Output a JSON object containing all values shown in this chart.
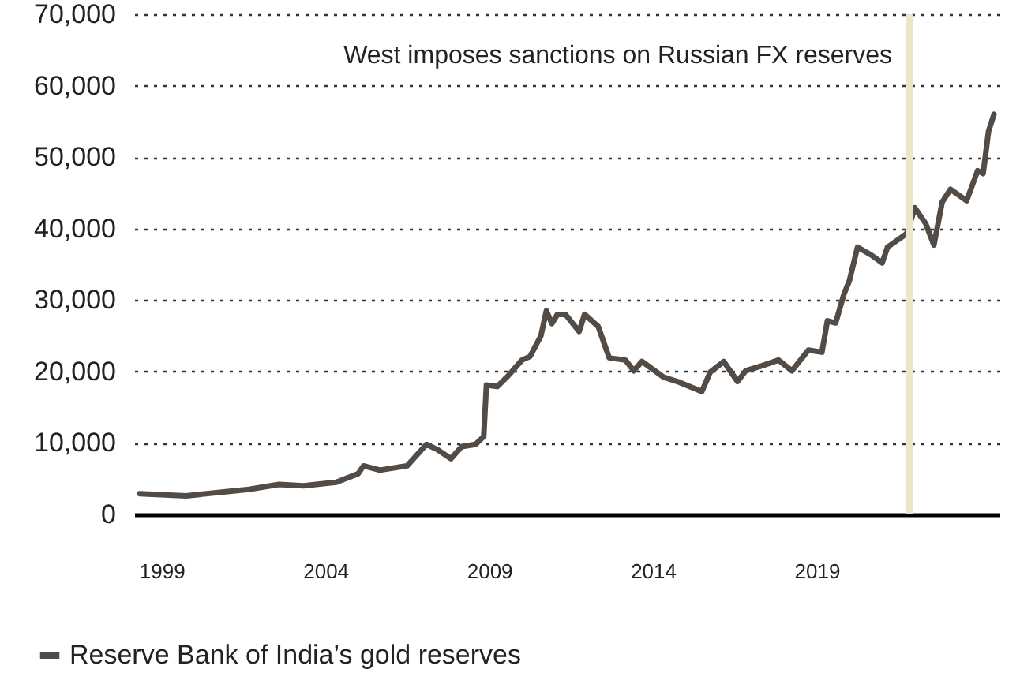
{
  "chart_data": {
    "type": "line",
    "x": [
      "1998-05",
      "1999-10",
      "2001-09",
      "2002-08",
      "2003-05",
      "2004-05",
      "2005-01",
      "2005-03",
      "2005-09",
      "2006-07",
      "2007-02",
      "2007-06",
      "2007-11",
      "2008-03",
      "2008-08",
      "2008-11",
      "2008-12",
      "2009-04",
      "2009-08",
      "2010-01",
      "2010-04",
      "2010-08",
      "2010-10",
      "2010-12",
      "2011-02",
      "2011-05",
      "2011-10",
      "2011-12",
      "2012-05",
      "2012-09",
      "2013-03",
      "2013-06",
      "2013-09",
      "2014-05",
      "2014-10",
      "2015-07",
      "2015-10",
      "2016-03",
      "2016-08",
      "2016-11",
      "2017-05",
      "2017-11",
      "2018-04",
      "2018-10",
      "2019-03",
      "2019-05",
      "2019-08",
      "2019-11",
      "2020-01",
      "2020-04",
      "2020-09",
      "2021-01",
      "2021-03",
      "2021-10",
      "2022-01",
      "2022-05",
      "2022-08",
      "2022-11",
      "2023-02",
      "2023-08",
      "2023-12",
      "2024-02",
      "2024-04",
      "2024-06"
    ],
    "series": [
      {
        "name": "Reserve Bank of India’s gold reserves",
        "color": "#524b46",
        "values": [
          2900,
          2600,
          3500,
          4200,
          4000,
          4500,
          5700,
          6800,
          6200,
          6800,
          9800,
          9100,
          7800,
          9500,
          9800,
          10900,
          18100,
          17900,
          19400,
          21600,
          22100,
          25000,
          28500,
          26700,
          28000,
          28000,
          25600,
          28000,
          26300,
          21900,
          21600,
          20100,
          21400,
          19200,
          18600,
          17200,
          19900,
          21400,
          18600,
          20100,
          20800,
          21600,
          20100,
          23000,
          22700,
          27100,
          26800,
          30800,
          32700,
          37400,
          36300,
          35200,
          37400,
          39300,
          42900,
          40700,
          37700,
          43700,
          45500,
          43900,
          48100,
          47700,
          53600,
          56000
        ]
      }
    ],
    "xlim": [
      "1998-03",
      "2024-08"
    ],
    "xticks": [
      {
        "value": "1999-01",
        "label": "1999"
      },
      {
        "value": "2004-01",
        "label": "2004"
      },
      {
        "value": "2009-01",
        "label": "2009"
      },
      {
        "value": "2014-01",
        "label": "2014"
      },
      {
        "value": "2019-01",
        "label": "2019"
      }
    ],
    "ylim": [
      0,
      70000
    ],
    "yticks": [
      0,
      {
        "value": 10000,
        "label": "10,000"
      },
      {
        "value": 20000,
        "label": "20,000"
      },
      {
        "value": 30000,
        "label": "30,000"
      },
      {
        "value": 40000,
        "label": "40,000"
      },
      {
        "value": 50000,
        "label": "50,000"
      },
      {
        "value": 60000,
        "label": "60,000"
      },
      {
        "value": 70000,
        "label": "70,000"
      }
    ],
    "grid": "y",
    "legend": "bottom left",
    "ref_lines": [
      {
        "axis": "x",
        "value": "2021-11",
        "label": "West imposes sanctions on Russian FX reserves",
        "color": "#ece5cc"
      }
    ]
  }
}
